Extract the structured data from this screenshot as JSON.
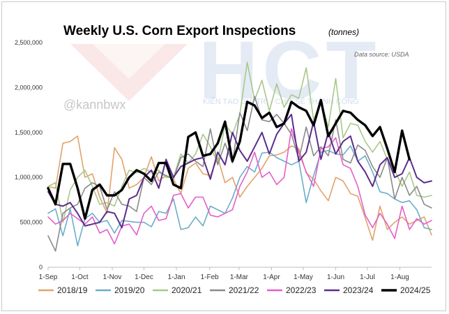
{
  "chart_data": {
    "type": "line",
    "title": "Weekly U.S. Corn Export Inspections",
    "title_unit": "(tonnes)",
    "source": "Data source: USDA",
    "watermark_handle": "@kannbwx",
    "watermark_logo_text": "HCT",
    "watermark_tagline": "KIẾN TẠO GIÁ TRỊ - CHIA SẺ THÀNH CÔNG",
    "xlabel": "",
    "ylabel": "",
    "ylim": [
      0,
      2500000
    ],
    "y_ticks": [
      {
        "value": 0,
        "label": "0"
      },
      {
        "value": 500000,
        "label": "500,000"
      },
      {
        "value": 1000000,
        "label": "1,000,000"
      },
      {
        "value": 1500000,
        "label": "1,500,000"
      },
      {
        "value": 2000000,
        "label": "2,000,000"
      },
      {
        "value": 2500000,
        "label": "2,500,000"
      }
    ],
    "x_ticks": [
      {
        "week": 1,
        "label": "1-Sep"
      },
      {
        "week": 5.3,
        "label": "1-Oct"
      },
      {
        "week": 9.7,
        "label": "1-Nov"
      },
      {
        "week": 14,
        "label": "1-Dec"
      },
      {
        "week": 18.4,
        "label": "1-Jan"
      },
      {
        "week": 22.9,
        "label": "1-Feb"
      },
      {
        "week": 26.9,
        "label": "1-Mar"
      },
      {
        "week": 31.3,
        "label": "1-Apr"
      },
      {
        "week": 35.6,
        "label": "1-May"
      },
      {
        "week": 40,
        "label": "1-Jun"
      },
      {
        "week": 44.3,
        "label": "1-Jul"
      },
      {
        "week": 48.7,
        "label": "1-Aug"
      }
    ],
    "x_range": [
      1,
      53
    ],
    "grid": false,
    "legend_position": "bottom",
    "series": [
      {
        "name": "2018/19",
        "color": "#e0a36a",
        "width": 1.6,
        "values": [
          900000,
          880000,
          1380000,
          1400000,
          1460000,
          1000000,
          1040000,
          780000,
          600000,
          1330000,
          1200000,
          880000,
          920000,
          1000000,
          1230000,
          960000,
          1020000,
          980000,
          820000,
          1100000,
          1160000,
          1040000,
          1020000,
          1220000,
          940000,
          1000000,
          780000,
          900000,
          1000000,
          1100000,
          1240000,
          1250000,
          1280000,
          1350000,
          1320000,
          1050000,
          980000,
          850000,
          740000,
          1000000,
          960000,
          820000,
          790000,
          550000,
          300000,
          680000,
          420000,
          500000,
          560000,
          480000,
          520000,
          560000,
          360000
        ]
      },
      {
        "name": "2019/20",
        "color": "#6aaec9",
        "width": 1.6,
        "values": [
          600000,
          650000,
          350000,
          650000,
          240000,
          540000,
          600000,
          500000,
          520000,
          380000,
          520000,
          510000,
          500000,
          500000,
          450000,
          620000,
          600000,
          760000,
          420000,
          440000,
          560000,
          460000,
          680000,
          640000,
          600000,
          770000,
          1000000,
          1120000,
          1060000,
          1270000,
          1280000,
          1220000,
          1180000,
          1140000,
          1180000,
          720000,
          1020000,
          1280000,
          1300000,
          1260000,
          1250000,
          1350000,
          1180000,
          1240000,
          1060000,
          840000,
          820000,
          760000,
          720000,
          740000,
          640000,
          440000,
          420000
        ]
      },
      {
        "name": "2020/21",
        "color": "#a8c88a",
        "width": 1.6,
        "values": [
          900000,
          940000,
          500000,
          860000,
          1000000,
          1080000,
          900000,
          700000,
          720000,
          680000,
          900000,
          1080000,
          1050000,
          1100000,
          1060000,
          1080000,
          1000000,
          1000000,
          1260000,
          1160000,
          1260000,
          1480000,
          1340000,
          1160000,
          1590000,
          1480000,
          1700000,
          2280000,
          1860000,
          2080000,
          1740000,
          2040000,
          1780000,
          1920000,
          1880000,
          2220000,
          1640000,
          1840000,
          1560000,
          2100000,
          1440000,
          1600000,
          1580000,
          1400000,
          1280000,
          1400000,
          1200000,
          1080000,
          900000,
          1060000,
          800000,
          780000,
          800000
        ]
      },
      {
        "name": "2021/22",
        "color": "#8a8a8a",
        "width": 1.6,
        "values": [
          350000,
          180000,
          600000,
          660000,
          700000,
          880000,
          940000,
          900000,
          640000,
          840000,
          700000,
          680000,
          620000,
          1000000,
          920000,
          1060000,
          1020000,
          980000,
          1220000,
          1260000,
          1180000,
          1120000,
          1540000,
          1140000,
          1380000,
          1160000,
          1720000,
          1520000,
          1900000,
          1640000,
          1620000,
          1700000,
          1600000,
          1480000,
          1200000,
          1560000,
          1240000,
          1340000,
          1240000,
          1640000,
          1200000,
          1160000,
          1360000,
          1300000,
          1120000,
          1000000,
          1220000,
          760000,
          1000000,
          800000,
          900000,
          700000,
          660000
        ]
      },
      {
        "name": "2022/23",
        "color": "#e45fc9",
        "width": 1.6,
        "values": [
          560000,
          480000,
          520000,
          600000,
          540000,
          480000,
          560000,
          380000,
          420000,
          260000,
          460000,
          480000,
          360000,
          600000,
          680000,
          520000,
          540000,
          800000,
          820000,
          660000,
          780000,
          780000,
          580000,
          560000,
          600000,
          640000,
          900000,
          1060000,
          1280000,
          1000000,
          1060000,
          920000,
          1000000,
          1540000,
          1280000,
          1060000,
          900000,
          1320000,
          1340000,
          1440000,
          1140000,
          1100000,
          900000,
          580000,
          440000,
          600000,
          480000,
          320000,
          680000,
          420000,
          540000,
          480000,
          520000
        ]
      },
      {
        "name": "2023/24",
        "color": "#5b2d8c",
        "width": 2.0,
        "values": [
          840000,
          700000,
          680000,
          720000,
          600000,
          460000,
          480000,
          500000,
          620000,
          600000,
          440000,
          760000,
          800000,
          1000000,
          1080000,
          880000,
          1200000,
          1000000,
          1120000,
          1160000,
          1200000,
          1220000,
          980000,
          1280000,
          1140000,
          1500000,
          1300000,
          1180000,
          1340000,
          1500000,
          1260000,
          1480000,
          1600000,
          1700000,
          1180000,
          1280000,
          1620000,
          1200000,
          1500000,
          1260000,
          1400000,
          1460000,
          1180000,
          1060000,
          900000,
          1140000,
          1220000,
          1000000,
          1040000,
          1220000,
          1000000,
          940000,
          960000
        ]
      },
      {
        "name": "2024/25",
        "color": "#000000",
        "width": 3.4,
        "values": [
          880000,
          700000,
          1150000,
          1150000,
          880000,
          540000,
          860000,
          920000,
          800000,
          800000,
          860000,
          1000000,
          1080000,
          1040000,
          960000,
          1160000,
          1160000,
          920000,
          880000,
          1450000,
          1500000,
          1240000,
          1260000,
          1380000,
          1620000,
          1180000,
          1400000,
          1840000,
          1800000,
          1660000,
          1720000,
          1560000,
          1600000,
          1840000,
          1780000,
          1740000,
          1580000,
          1860000,
          1460000,
          1600000,
          1740000,
          1720000,
          1640000,
          1580000,
          1460000,
          1560000,
          1320000,
          1060000,
          1520000,
          1200000
        ]
      }
    ]
  }
}
